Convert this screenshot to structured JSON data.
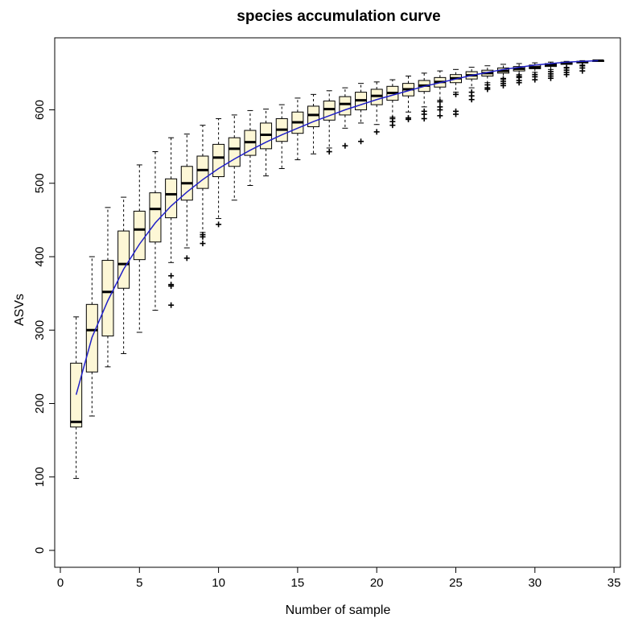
{
  "chart_data": {
    "type": "box",
    "title": "species accumulation curve",
    "xlabel": "Number of sample",
    "ylabel": "ASVs",
    "xlim": [
      0,
      35
    ],
    "ylim": [
      0,
      670
    ],
    "xticks": [
      0,
      5,
      10,
      15,
      20,
      25,
      30,
      35
    ],
    "yticks": [
      0,
      100,
      200,
      300,
      400,
      500,
      600
    ],
    "grid": false,
    "colors": {
      "box_fill": "#fdf7d6",
      "mean_line": "#2020c8",
      "outline": "#000000"
    },
    "mean_curve": {
      "x": [
        1,
        2,
        3,
        4,
        5,
        6,
        7,
        8,
        9,
        10,
        11,
        12,
        13,
        14,
        15,
        16,
        17,
        18,
        19,
        20,
        21,
        22,
        23,
        24,
        25,
        26,
        27,
        28,
        29,
        30,
        31,
        32,
        33,
        34
      ],
      "y": [
        212,
        290,
        340,
        383,
        417,
        446,
        469,
        488,
        505,
        520,
        533,
        545,
        556,
        566,
        575,
        584,
        592,
        600,
        607,
        614,
        620,
        626,
        632,
        637,
        642,
        647,
        651,
        655,
        658,
        661,
        663,
        665,
        666,
        667
      ]
    },
    "boxes": [
      {
        "x": 1,
        "min": 98,
        "q1": 168,
        "median": 175,
        "q3": 255,
        "max": 318,
        "outliers": []
      },
      {
        "x": 2,
        "min": 183,
        "q1": 243,
        "median": 300,
        "q3": 335,
        "max": 400,
        "outliers": []
      },
      {
        "x": 3,
        "min": 250,
        "q1": 292,
        "median": 352,
        "q3": 395,
        "max": 467,
        "outliers": []
      },
      {
        "x": 4,
        "min": 268,
        "q1": 357,
        "median": 390,
        "q3": 435,
        "max": 481,
        "outliers": []
      },
      {
        "x": 5,
        "min": 297,
        "q1": 396,
        "median": 437,
        "q3": 462,
        "max": 525,
        "outliers": []
      },
      {
        "x": 6,
        "min": 327,
        "q1": 420,
        "median": 465,
        "q3": 487,
        "max": 543,
        "outliers": []
      },
      {
        "x": 7,
        "min": 392,
        "q1": 453,
        "median": 485,
        "q3": 506,
        "max": 562,
        "outliers": [
          374,
          362,
          360,
          334
        ]
      },
      {
        "x": 8,
        "min": 412,
        "q1": 477,
        "median": 500,
        "q3": 523,
        "max": 567,
        "outliers": [
          398
        ]
      },
      {
        "x": 9,
        "min": 433,
        "q1": 493,
        "median": 518,
        "q3": 537,
        "max": 579,
        "outliers": [
          430,
          427,
          418
        ]
      },
      {
        "x": 10,
        "min": 452,
        "q1": 509,
        "median": 535,
        "q3": 553,
        "max": 588,
        "outliers": [
          444
        ]
      },
      {
        "x": 11,
        "min": 477,
        "q1": 523,
        "median": 547,
        "q3": 562,
        "max": 593,
        "outliers": []
      },
      {
        "x": 12,
        "min": 497,
        "q1": 538,
        "median": 556,
        "q3": 572,
        "max": 599,
        "outliers": []
      },
      {
        "x": 13,
        "min": 510,
        "q1": 547,
        "median": 566,
        "q3": 582,
        "max": 601,
        "outliers": []
      },
      {
        "x": 14,
        "min": 520,
        "q1": 557,
        "median": 573,
        "q3": 588,
        "max": 607,
        "outliers": []
      },
      {
        "x": 15,
        "min": 532,
        "q1": 568,
        "median": 583,
        "q3": 597,
        "max": 616,
        "outliers": []
      },
      {
        "x": 16,
        "min": 540,
        "q1": 577,
        "median": 593,
        "q3": 605,
        "max": 621,
        "outliers": []
      },
      {
        "x": 17,
        "min": 548,
        "q1": 586,
        "median": 601,
        "q3": 612,
        "max": 626,
        "outliers": [
          543
        ]
      },
      {
        "x": 18,
        "min": 575,
        "q1": 593,
        "median": 608,
        "q3": 618,
        "max": 630,
        "outliers": [
          551
        ]
      },
      {
        "x": 19,
        "min": 582,
        "q1": 600,
        "median": 613,
        "q3": 624,
        "max": 636,
        "outliers": [
          557
        ]
      },
      {
        "x": 20,
        "min": 580,
        "q1": 607,
        "median": 619,
        "q3": 628,
        "max": 638,
        "outliers": [
          570
        ]
      },
      {
        "x": 21,
        "min": 590,
        "q1": 613,
        "median": 623,
        "q3": 632,
        "max": 641,
        "outliers": [
          588,
          584,
          579
        ]
      },
      {
        "x": 22,
        "min": 597,
        "q1": 619,
        "median": 628,
        "q3": 636,
        "max": 646,
        "outliers": [
          589,
          587
        ]
      },
      {
        "x": 23,
        "min": 604,
        "q1": 625,
        "median": 633,
        "q3": 640,
        "max": 650,
        "outliers": [
          598,
          594,
          588
        ]
      },
      {
        "x": 24,
        "min": 613,
        "q1": 631,
        "median": 638,
        "q3": 644,
        "max": 653,
        "outliers": [
          611,
          604,
          600,
          592
        ]
      },
      {
        "x": 25,
        "min": 624,
        "q1": 637,
        "median": 643,
        "q3": 648,
        "max": 655,
        "outliers": [
          621,
          598,
          594
        ]
      },
      {
        "x": 26,
        "min": 630,
        "q1": 642,
        "median": 647,
        "q3": 652,
        "max": 658,
        "outliers": [
          624,
          619,
          614
        ]
      },
      {
        "x": 27,
        "min": 637,
        "q1": 646,
        "median": 650,
        "q3": 654,
        "max": 660,
        "outliers": [
          634,
          630,
          628
        ]
      },
      {
        "x": 28,
        "min": 643,
        "q1": 650,
        "median": 653,
        "q3": 657,
        "max": 662,
        "outliers": [
          642,
          639,
          636,
          633
        ]
      },
      {
        "x": 29,
        "min": 648,
        "q1": 653,
        "median": 656,
        "q3": 659,
        "max": 663,
        "outliers": [
          646,
          644,
          640,
          637
        ]
      },
      {
        "x": 30,
        "min": 651,
        "q1": 656,
        "median": 658,
        "q3": 661,
        "max": 664,
        "outliers": [
          648,
          645,
          641
        ]
      },
      {
        "x": 31,
        "min": 655,
        "q1": 659,
        "median": 661,
        "q3": 663,
        "max": 665,
        "outliers": [
          652,
          649,
          646,
          643
        ]
      },
      {
        "x": 32,
        "min": 658,
        "q1": 662,
        "median": 663,
        "q3": 665,
        "max": 666,
        "outliers": [
          657,
          654,
          651,
          648
        ]
      },
      {
        "x": 33,
        "min": 661,
        "q1": 664,
        "median": 665,
        "q3": 666,
        "max": 667,
        "outliers": [
          660,
          657,
          653
        ]
      },
      {
        "x": 34,
        "min": 667,
        "q1": 667,
        "median": 667,
        "q3": 667,
        "max": 667,
        "outliers": []
      }
    ]
  }
}
